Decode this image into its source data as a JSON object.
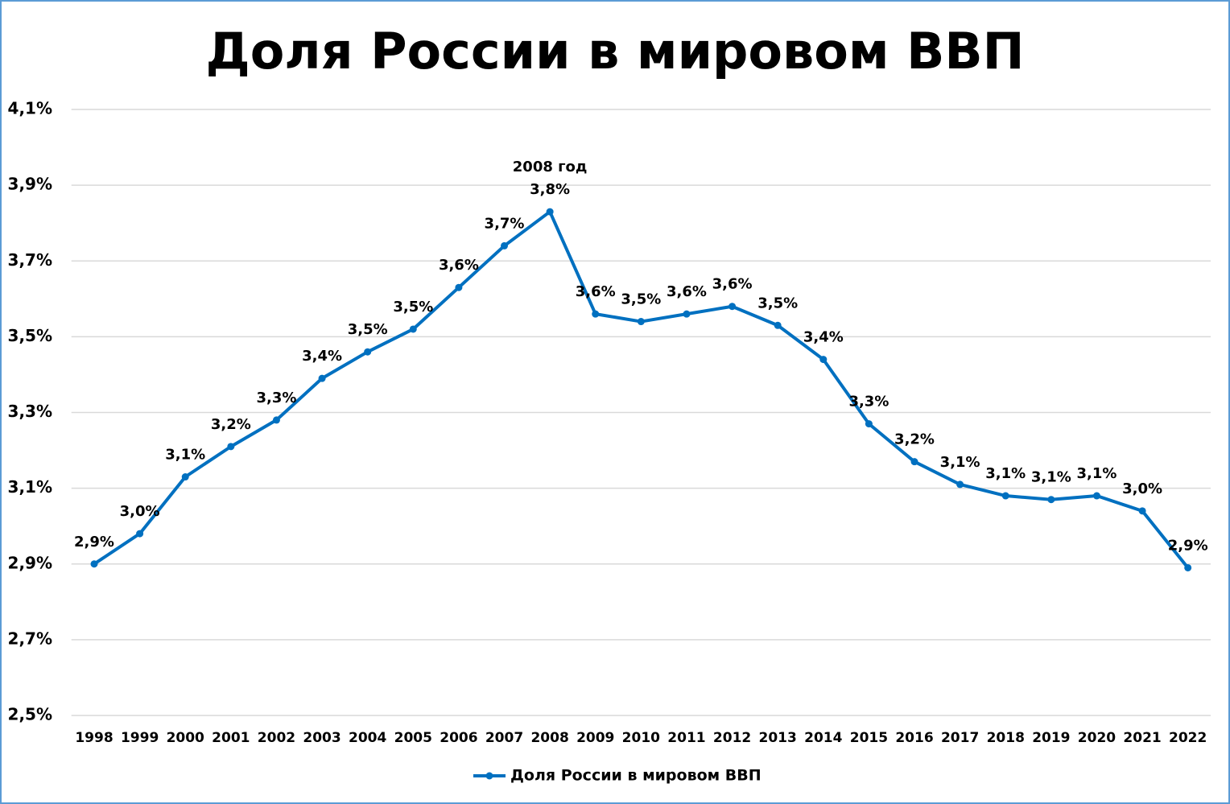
{
  "chart_data": {
    "type": "line",
    "title": "Доля России в мировом ВВП",
    "categories": [
      "1998",
      "1999",
      "2000",
      "2001",
      "2002",
      "2003",
      "2004",
      "2005",
      "2006",
      "2007",
      "2008",
      "2009",
      "2010",
      "2011",
      "2012",
      "2013",
      "2014",
      "2015",
      "2016",
      "2017",
      "2018",
      "2019",
      "2020",
      "2021",
      "2022"
    ],
    "series": [
      {
        "name": "Доля России в мировом ВВП",
        "color": "#0070c0",
        "values": [
          2.9,
          2.98,
          3.13,
          3.21,
          3.28,
          3.39,
          3.46,
          3.52,
          3.63,
          3.74,
          3.83,
          3.56,
          3.54,
          3.56,
          3.58,
          3.53,
          3.44,
          3.27,
          3.17,
          3.11,
          3.08,
          3.07,
          3.08,
          3.04,
          2.89
        ],
        "value_labels": [
          "2,9%",
          "3,0%",
          "3,1%",
          "3,2%",
          "3,3%",
          "3,4%",
          "3,5%",
          "3,5%",
          "3,6%",
          "3,7%",
          "3,8%",
          "3,6%",
          "3,5%",
          "3,6%",
          "3,6%",
          "3,5%",
          "3,4%",
          "3,3%",
          "3,2%",
          "3,1%",
          "3,1%",
          "3,1%",
          "3,1%",
          "3,0%",
          "2,9%"
        ]
      }
    ],
    "ylim": [
      2.5,
      4.1
    ],
    "yticks": [
      {
        "value": 2.5,
        "label": "2,5%"
      },
      {
        "value": 2.7,
        "label": "2,7%"
      },
      {
        "value": 2.9,
        "label": "2,9%"
      },
      {
        "value": 3.1,
        "label": "3,1%"
      },
      {
        "value": 3.3,
        "label": "3,3%"
      },
      {
        "value": 3.5,
        "label": "3,5%"
      },
      {
        "value": 3.7,
        "label": "3,7%"
      },
      {
        "value": 3.9,
        "label": "3,9%"
      },
      {
        "value": 4.1,
        "label": "4,1%"
      }
    ],
    "grid": true,
    "legend": "bottom",
    "annotations": [
      {
        "text": "2008 год",
        "x": "2008"
      }
    ]
  }
}
